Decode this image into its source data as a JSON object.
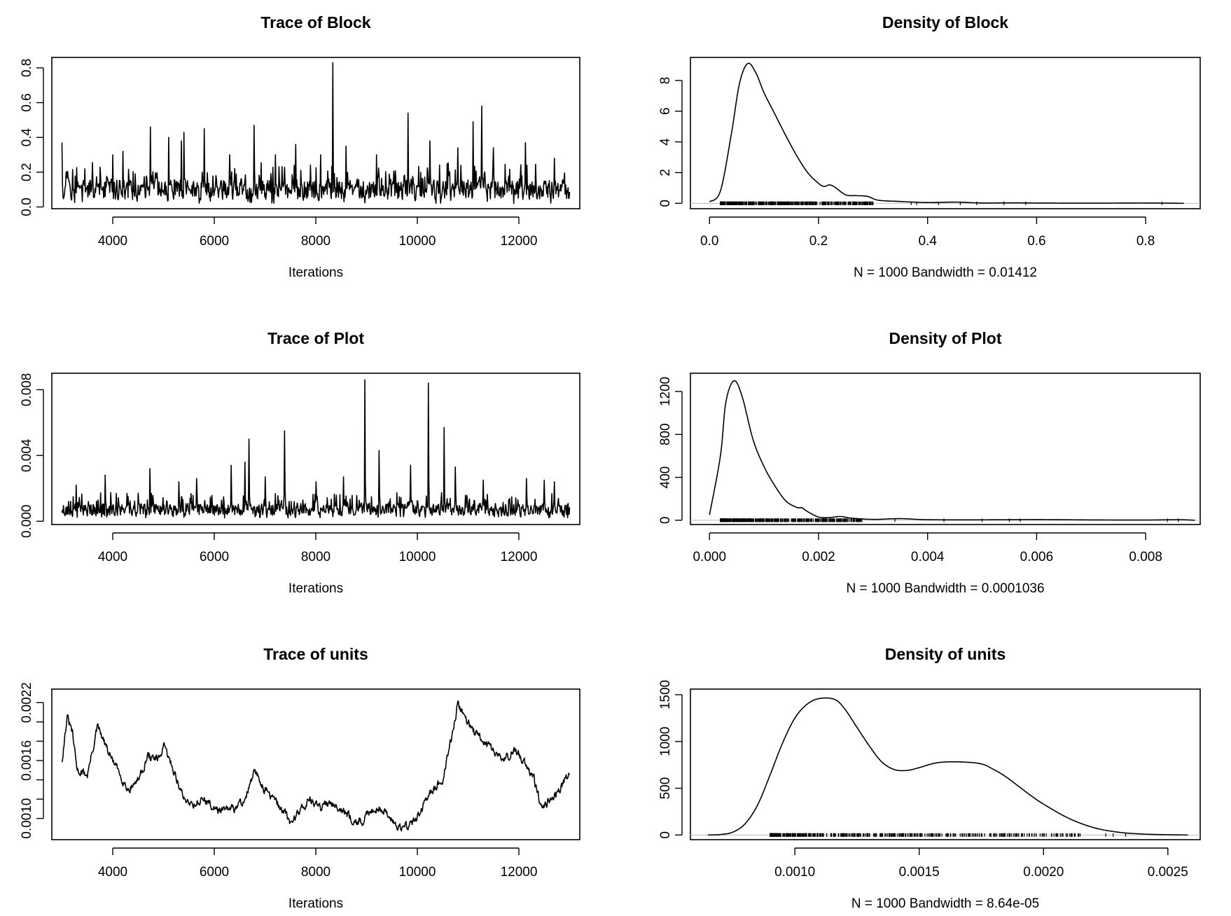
{
  "chart_data": [
    {
      "type": "line",
      "title": "Trace of Block",
      "xlabel": "Iterations",
      "ylabel": "",
      "xlim": [
        2800,
        13200
      ],
      "ylim": [
        -0.01,
        0.86
      ],
      "xticks": [
        4000,
        6000,
        8000,
        10000,
        12000
      ],
      "xticklabels": [
        "4000",
        "6000",
        "8000",
        "10000",
        "12000"
      ],
      "yticks": [
        0,
        0.2,
        0.4,
        0.6,
        0.8
      ],
      "yticklabels": [
        "0.0",
        "0.2",
        "0.4",
        "0.6",
        "0.8"
      ],
      "grid": false,
      "trace": {
        "start": 3000,
        "end": 13000,
        "n": 1000,
        "base": 0.1,
        "spread": 0.06,
        "min": 0.02,
        "seed": 11
      },
      "spikes": [
        [
          3000,
          0.37
        ],
        [
          3450,
          0.22
        ],
        [
          4000,
          0.3
        ],
        [
          4200,
          0.32
        ],
        [
          4740,
          0.46
        ],
        [
          5100,
          0.4
        ],
        [
          5350,
          0.38
        ],
        [
          5400,
          0.43
        ],
        [
          5800,
          0.45
        ],
        [
          6300,
          0.3
        ],
        [
          6780,
          0.47
        ],
        [
          7200,
          0.3
        ],
        [
          7600,
          0.36
        ],
        [
          8100,
          0.3
        ],
        [
          8340,
          0.83
        ],
        [
          8600,
          0.35
        ],
        [
          9200,
          0.3
        ],
        [
          9820,
          0.54
        ],
        [
          10250,
          0.38
        ],
        [
          10800,
          0.34
        ],
        [
          11100,
          0.49
        ],
        [
          11270,
          0.58
        ],
        [
          11500,
          0.34
        ],
        [
          12130,
          0.37
        ],
        [
          12700,
          0.28
        ]
      ]
    },
    {
      "type": "line",
      "title": "Density of Block",
      "xlabel": "N = 1000   Bandwidth = 0.01412",
      "ylabel": "",
      "xlim": [
        -0.035,
        0.9
      ],
      "ylim": [
        -0.35,
        9.5
      ],
      "xticks": [
        0,
        0.2,
        0.4,
        0.6,
        0.8
      ],
      "xticklabels": [
        "0.0",
        "0.2",
        "0.4",
        "0.6",
        "0.8"
      ],
      "yticks": [
        0,
        2,
        4,
        6,
        8
      ],
      "yticklabels": [
        "0",
        "2",
        "4",
        "6",
        "8"
      ],
      "grid": false,
      "x": [
        0.0,
        0.02,
        0.04,
        0.055,
        0.07,
        0.085,
        0.1,
        0.12,
        0.14,
        0.16,
        0.18,
        0.2,
        0.21,
        0.22,
        0.23,
        0.25,
        0.27,
        0.29,
        0.31,
        0.35,
        0.4,
        0.45,
        0.5,
        0.55,
        0.6,
        0.7,
        0.8,
        0.87
      ],
      "y": [
        0.1,
        0.8,
        4.5,
        7.8,
        9.1,
        8.5,
        7.2,
        5.8,
        4.4,
        3.1,
        2.0,
        1.3,
        1.1,
        1.2,
        1.05,
        0.55,
        0.5,
        0.45,
        0.2,
        0.12,
        0.05,
        0.08,
        0.02,
        0.03,
        0.02,
        0.01,
        0.02,
        0.0
      ],
      "rug": {
        "min": 0.02,
        "max": 0.6,
        "dense_max": 0.3,
        "extra": [
          0.37,
          0.38,
          0.42,
          0.46,
          0.49,
          0.54,
          0.58,
          0.83
        ]
      }
    },
    {
      "type": "line",
      "title": "Trace of Plot",
      "xlabel": "Iterations",
      "ylabel": "",
      "xlim": [
        2800,
        13200
      ],
      "ylim": [
        -0.0002,
        0.009
      ],
      "xticks": [
        4000,
        6000,
        8000,
        10000,
        12000
      ],
      "xticklabels": [
        "4000",
        "6000",
        "8000",
        "10000",
        "12000"
      ],
      "yticks": [
        0,
        0.004,
        0.008
      ],
      "yticklabels": [
        "0.000",
        "0.004",
        "0.008"
      ],
      "grid": false,
      "trace": {
        "start": 3000,
        "end": 13000,
        "n": 1000,
        "base": 0.0007,
        "spread": 0.0004,
        "min": 0.0002,
        "seed": 23
      },
      "spikes": [
        [
          3280,
          0.0022
        ],
        [
          3850,
          0.0028
        ],
        [
          4730,
          0.0032
        ],
        [
          5300,
          0.0024
        ],
        [
          5650,
          0.0026
        ],
        [
          6330,
          0.0034
        ],
        [
          6600,
          0.0036
        ],
        [
          6680,
          0.005
        ],
        [
          7000,
          0.0027
        ],
        [
          7380,
          0.0055
        ],
        [
          8000,
          0.0024
        ],
        [
          8550,
          0.0027
        ],
        [
          8970,
          0.0086
        ],
        [
          9250,
          0.0043
        ],
        [
          9870,
          0.0034
        ],
        [
          10220,
          0.0084
        ],
        [
          10530,
          0.0057
        ],
        [
          10750,
          0.0033
        ],
        [
          11300,
          0.0025
        ],
        [
          12150,
          0.0026
        ],
        [
          12500,
          0.0025
        ],
        [
          12700,
          0.0024
        ]
      ]
    },
    {
      "type": "line",
      "title": "Density of Plot",
      "xlabel": "N = 1000   Bandwidth = 0.0001036",
      "ylabel": "",
      "xlim": [
        -0.00035,
        0.009
      ],
      "ylim": [
        -40,
        1370
      ],
      "xticks": [
        0,
        0.002,
        0.004,
        0.006,
        0.008
      ],
      "xticklabels": [
        "0.000",
        "0.002",
        "0.004",
        "0.006",
        "0.008"
      ],
      "yticks": [
        0,
        400,
        800,
        1200
      ],
      "yticklabels": [
        "0",
        "400",
        "800",
        "1200"
      ],
      "grid": false,
      "x": [
        0.0,
        0.0002,
        0.0003,
        0.00045,
        0.0006,
        0.0008,
        0.001,
        0.0012,
        0.0014,
        0.0016,
        0.0017,
        0.0018,
        0.002,
        0.0022,
        0.0024,
        0.0026,
        0.003,
        0.0035,
        0.004,
        0.005,
        0.006,
        0.007,
        0.008,
        0.0086,
        0.0089
      ],
      "y": [
        50,
        600,
        1100,
        1300,
        1150,
        750,
        500,
        320,
        180,
        120,
        115,
        80,
        30,
        25,
        35,
        20,
        8,
        15,
        5,
        4,
        6,
        3,
        2,
        5,
        0
      ],
      "rug": {
        "min": 0.0002,
        "max": 0.0058,
        "dense_max": 0.0028,
        "extra": [
          0.0034,
          0.0043,
          0.005,
          0.0055,
          0.0057,
          0.0084,
          0.0086
        ]
      }
    },
    {
      "type": "line",
      "title": "Trace of units",
      "xlabel": "Iterations",
      "ylabel": "",
      "xlim": [
        2800,
        13200
      ],
      "ylim": [
        0.00078,
        0.00234
      ],
      "xticks": [
        4000,
        6000,
        8000,
        10000,
        12000
      ],
      "xticklabels": [
        "4000",
        "6000",
        "8000",
        "10000",
        "12000"
      ],
      "yticks": [
        0.001,
        0.0012,
        0.0014,
        0.0016,
        0.0018,
        0.002,
        0.0022
      ],
      "yticklabels": [
        "0.0010",
        "",
        "",
        "0.0016",
        "",
        "",
        "0.0022"
      ],
      "grid": false,
      "x": [
        3000,
        3100,
        3200,
        3300,
        3500,
        3700,
        3900,
        4100,
        4300,
        4500,
        4700,
        4900,
        5000,
        5200,
        5400,
        5600,
        5800,
        6000,
        6200,
        6400,
        6600,
        6800,
        7000,
        7200,
        7400,
        7500,
        7700,
        7900,
        8100,
        8300,
        8500,
        8700,
        8900,
        9100,
        9300,
        9500,
        9700,
        9900,
        10100,
        10300,
        10500,
        10700,
        10800,
        10900,
        11100,
        11300,
        11500,
        11700,
        11900,
        12100,
        12300,
        12450,
        12600,
        12800,
        13000
      ],
      "y": [
        0.0016,
        0.00205,
        0.0019,
        0.0015,
        0.00145,
        0.00195,
        0.0017,
        0.0015,
        0.0013,
        0.0014,
        0.00165,
        0.0016,
        0.00175,
        0.0015,
        0.0012,
        0.00115,
        0.0012,
        0.0011,
        0.00108,
        0.0011,
        0.0012,
        0.00148,
        0.0013,
        0.00118,
        0.00105,
        0.00095,
        0.0011,
        0.0012,
        0.0011,
        0.00118,
        0.0011,
        0.001,
        0.00095,
        0.0011,
        0.0011,
        0.00098,
        0.0009,
        0.00095,
        0.0011,
        0.0013,
        0.0014,
        0.0019,
        0.0022,
        0.0021,
        0.0019,
        0.0018,
        0.0017,
        0.0016,
        0.0017,
        0.0016,
        0.0014,
        0.0011,
        0.0012,
        0.0013,
        0.0015
      ],
      "noise": {
        "amp": 3.5e-05,
        "seed": 31
      }
    },
    {
      "type": "line",
      "title": "Density of units",
      "xlabel": "N = 1000   Bandwidth = 8.64e-05",
      "ylabel": "",
      "xlim": [
        0.00058,
        0.00263
      ],
      "ylim": [
        -50,
        1560
      ],
      "xticks": [
        0.001,
        0.0015,
        0.002,
        0.0025
      ],
      "xticklabels": [
        "0.0010",
        "0.0015",
        "0.0020",
        "0.0025"
      ],
      "yticks": [
        0,
        500,
        1000,
        1500
      ],
      "yticklabels": [
        "0",
        "500",
        "1000",
        "1500"
      ],
      "grid": false,
      "x": [
        0.00065,
        0.0007,
        0.00075,
        0.0008,
        0.00085,
        0.0009,
        0.00095,
        0.001,
        0.00105,
        0.0011,
        0.00116,
        0.0012,
        0.00125,
        0.0013,
        0.00135,
        0.0014,
        0.00145,
        0.0015,
        0.00155,
        0.0016,
        0.00168,
        0.00175,
        0.0018,
        0.00185,
        0.0019,
        0.00195,
        0.002,
        0.0021,
        0.0022,
        0.0023,
        0.0024,
        0.0025,
        0.00258
      ],
      "y": [
        0,
        5,
        30,
        120,
        320,
        640,
        980,
        1250,
        1400,
        1460,
        1450,
        1350,
        1150,
        950,
        780,
        700,
        690,
        720,
        760,
        780,
        780,
        760,
        700,
        620,
        520,
        420,
        330,
        180,
        80,
        30,
        10,
        3,
        0
      ],
      "rug": {
        "min": 0.0009,
        "max": 0.00232,
        "dense_max": 0.00215,
        "extra": [
          0.00225,
          0.00228,
          0.00233
        ]
      }
    }
  ]
}
